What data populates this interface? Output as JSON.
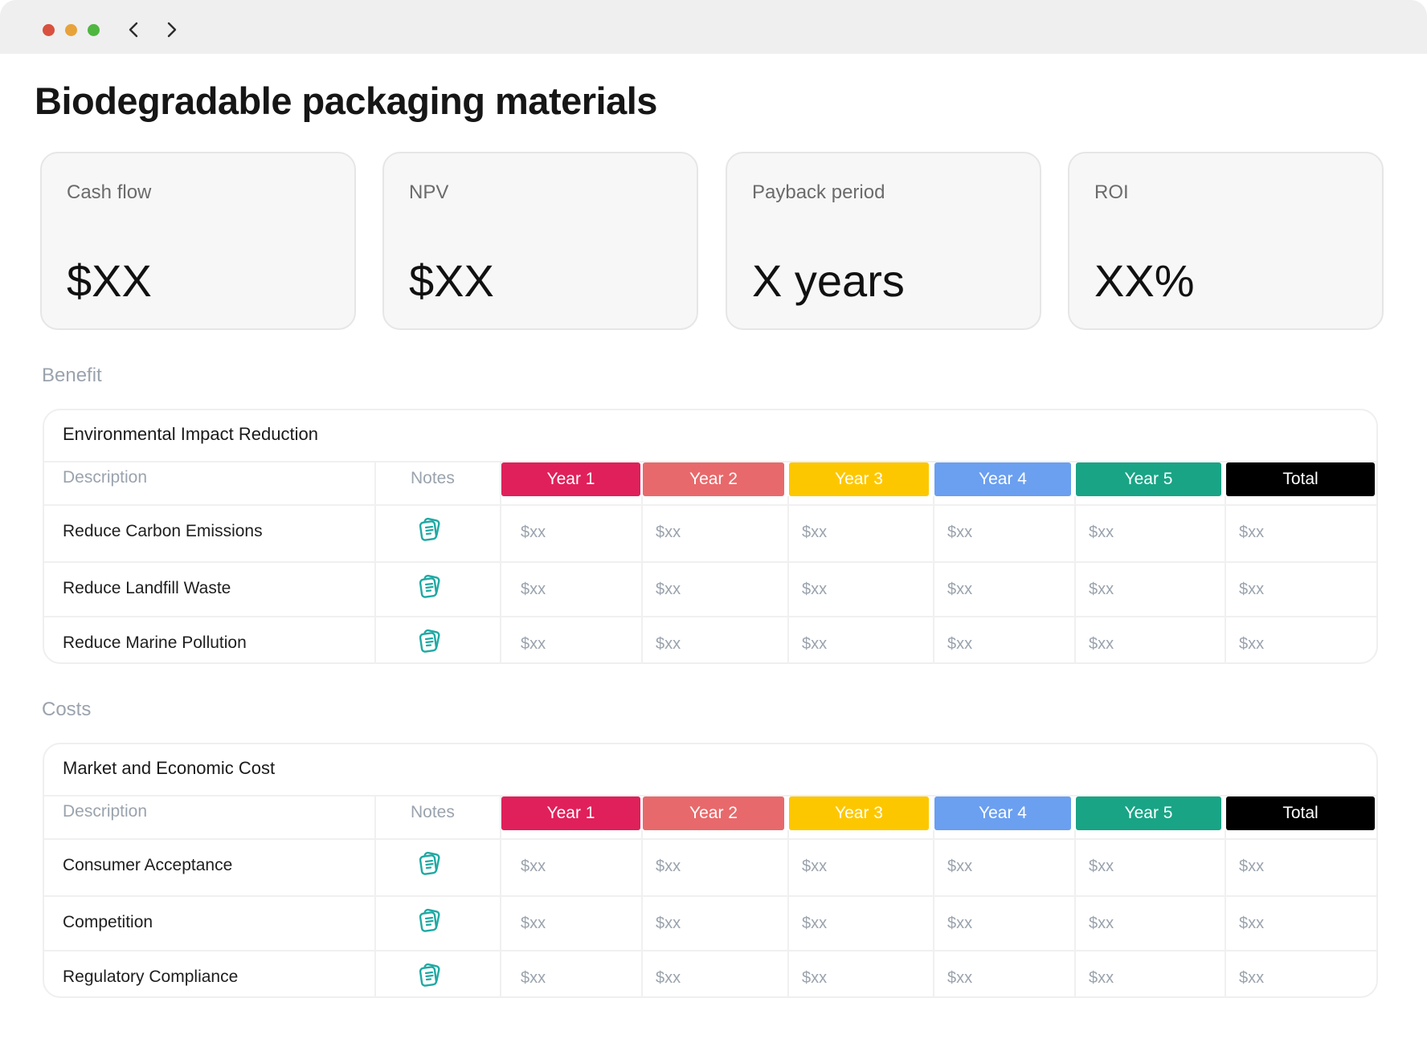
{
  "window": {
    "title": "Biodegradable packaging materials",
    "nav": {
      "back_icon": "chevron-left-icon",
      "forward_icon": "chevron-right-icon"
    }
  },
  "kpis": [
    {
      "label": "Cash flow",
      "value": "$XX"
    },
    {
      "label": "NPV",
      "value": "$XX"
    },
    {
      "label": "Payback period",
      "value": "X years"
    },
    {
      "label": "ROI",
      "value": "XX%"
    }
  ],
  "columns": {
    "description": "Description",
    "notes": "Notes",
    "years": [
      {
        "label": "Year 1",
        "color": "#e0205a"
      },
      {
        "label": "Year 2",
        "color": "#e8696b"
      },
      {
        "label": "Year 3",
        "color": "#fdc700"
      },
      {
        "label": "Year 4",
        "color": "#6b9ff0"
      },
      {
        "label": "Year 5",
        "color": "#19a486"
      },
      {
        "label": "Total",
        "color": "#000000"
      }
    ]
  },
  "sections": [
    {
      "label": "Benefit",
      "table_title": "Environmental Impact Reduction",
      "rows": [
        {
          "description": "Reduce Carbon Emissions",
          "note_icon": "notes-icon",
          "values": [
            "$xx",
            "$xx",
            "$xx",
            "$xx",
            "$xx",
            "$xx"
          ]
        },
        {
          "description": "Reduce Landfill Waste",
          "note_icon": "notes-icon",
          "values": [
            "$xx",
            "$xx",
            "$xx",
            "$xx",
            "$xx",
            "$xx"
          ]
        },
        {
          "description": "Reduce Marine Pollution",
          "note_icon": "notes-icon",
          "values": [
            "$xx",
            "$xx",
            "$xx",
            "$xx",
            "$xx",
            "$xx"
          ]
        }
      ]
    },
    {
      "label": "Costs",
      "table_title": "Market and Economic Cost",
      "rows": [
        {
          "description": "Consumer Acceptance",
          "note_icon": "notes-icon",
          "values": [
            "$xx",
            "$xx",
            "$xx",
            "$xx",
            "$xx",
            "$xx"
          ]
        },
        {
          "description": "Competition",
          "note_icon": "notes-icon",
          "values": [
            "$xx",
            "$xx",
            "$xx",
            "$xx",
            "$xx",
            "$xx"
          ]
        },
        {
          "description": "Regulatory Compliance",
          "note_icon": "notes-icon",
          "values": [
            "$xx",
            "$xx",
            "$xx",
            "$xx",
            "$xx",
            "$xx"
          ]
        }
      ]
    }
  ]
}
